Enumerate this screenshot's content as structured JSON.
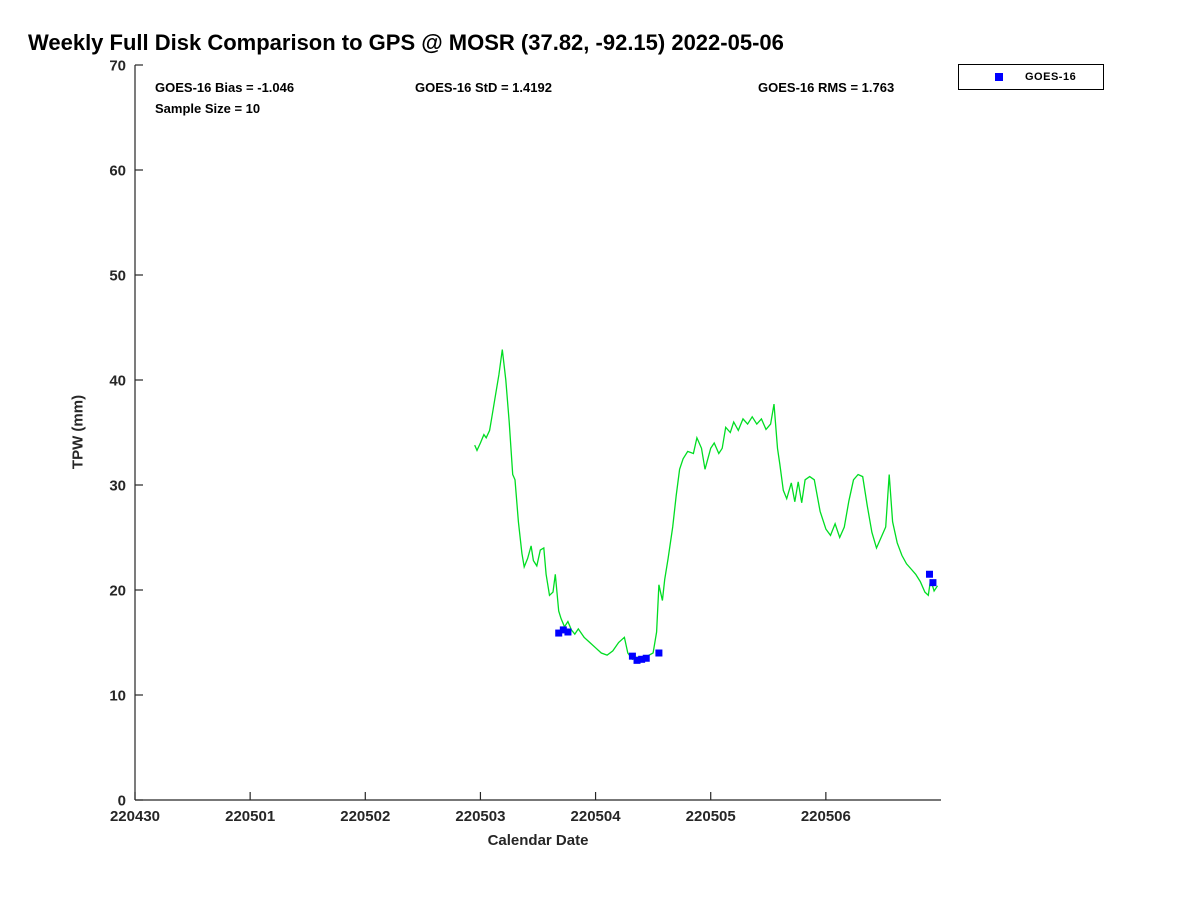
{
  "title": "Weekly Full Disk Comparison to GPS @ MOSR (37.82, -92.15) 2022-05-06",
  "annotations": {
    "bias": "GOES-16 Bias = -1.046",
    "std": "GOES-16 StD = 1.4192",
    "rms": "GOES-16 RMS = 1.763",
    "sample_size": "Sample Size = 10"
  },
  "legend": {
    "position": "top-right",
    "entries": [
      {
        "label": "GOES-16",
        "marker": "square",
        "color": "#0000ff"
      }
    ]
  },
  "chart_data": {
    "type": "line",
    "title": "Weekly Full Disk Comparison to GPS @ MOSR (37.82, -92.15) 2022-05-06",
    "xlabel": "Calendar Date",
    "ylabel": "TPW (mm)",
    "x_axis": {
      "unit": "days since 220430",
      "range": [
        0,
        7
      ],
      "tick_positions": [
        0,
        1,
        2,
        3,
        4,
        5,
        6
      ],
      "tick_labels": [
        "220430",
        "220501",
        "220502",
        "220503",
        "220504",
        "220505",
        "220506"
      ]
    },
    "ylim": [
      0,
      70
    ],
    "yticks": [
      0,
      10,
      20,
      30,
      40,
      50,
      60,
      70
    ],
    "grid": false,
    "series": [
      {
        "name": "GPS TPW",
        "type": "line",
        "color": "#00dd22",
        "x": [
          2.95,
          2.97,
          3.0,
          3.03,
          3.05,
          3.08,
          3.1,
          3.13,
          3.16,
          3.19,
          3.22,
          3.25,
          3.28,
          3.3,
          3.33,
          3.36,
          3.38,
          3.41,
          3.44,
          3.46,
          3.49,
          3.52,
          3.55,
          3.57,
          3.6,
          3.63,
          3.65,
          3.68,
          3.7,
          3.73,
          3.76,
          3.79,
          3.82,
          3.85,
          3.9,
          3.95,
          4.0,
          4.05,
          4.1,
          4.15,
          4.2,
          4.25,
          4.28,
          4.32,
          4.36,
          4.4,
          4.45,
          4.5,
          4.53,
          4.55,
          4.58,
          4.6,
          4.63,
          4.67,
          4.7,
          4.73,
          4.76,
          4.8,
          4.85,
          4.88,
          4.92,
          4.95,
          5.0,
          5.03,
          5.07,
          5.1,
          5.13,
          5.17,
          5.2,
          5.24,
          5.28,
          5.32,
          5.36,
          5.4,
          5.44,
          5.48,
          5.52,
          5.55,
          5.58,
          5.6,
          5.63,
          5.66,
          5.7,
          5.73,
          5.76,
          5.79,
          5.82,
          5.86,
          5.9,
          5.95,
          6.0,
          6.04,
          6.08,
          6.12,
          6.16,
          6.2,
          6.24,
          6.28,
          6.32,
          6.36,
          6.4,
          6.44,
          6.48,
          6.52,
          6.55,
          6.58,
          6.62,
          6.66,
          6.7,
          6.74,
          6.78,
          6.82,
          6.86,
          6.89,
          6.91,
          6.94,
          6.97
        ],
        "y": [
          33.8,
          33.3,
          34.0,
          34.8,
          34.5,
          35.2,
          36.5,
          38.5,
          40.5,
          42.9,
          40.0,
          36.0,
          31.0,
          30.5,
          26.5,
          23.5,
          22.2,
          23.0,
          24.2,
          22.8,
          22.3,
          23.8,
          24.0,
          21.5,
          19.5,
          19.8,
          21.5,
          18.0,
          17.3,
          16.5,
          17.0,
          16.2,
          15.8,
          16.3,
          15.5,
          15.0,
          14.5,
          14.0,
          13.8,
          14.2,
          15.0,
          15.5,
          14.0,
          13.4,
          13.6,
          13.5,
          13.7,
          14.0,
          16.0,
          20.5,
          19.0,
          21.0,
          23.0,
          26.0,
          29.0,
          31.5,
          32.5,
          33.2,
          33.0,
          34.5,
          33.5,
          31.5,
          33.5,
          34.0,
          33.0,
          33.5,
          35.5,
          35.0,
          36.0,
          35.2,
          36.3,
          35.8,
          36.5,
          35.8,
          36.3,
          35.3,
          35.8,
          37.7,
          33.5,
          32.0,
          29.5,
          28.7,
          30.2,
          28.4,
          30.3,
          28.3,
          30.5,
          30.8,
          30.5,
          27.5,
          25.8,
          25.2,
          26.3,
          25.0,
          26.0,
          28.5,
          30.5,
          31.0,
          30.8,
          28.0,
          25.5,
          24.0,
          25.0,
          26.0,
          31.0,
          26.5,
          24.5,
          23.3,
          22.5,
          22.0,
          21.5,
          20.8,
          19.8,
          19.5,
          21.0,
          19.9,
          20.4
        ]
      },
      {
        "name": "GOES-16",
        "type": "scatter",
        "marker": "square",
        "color": "#0000ff",
        "x": [
          3.68,
          3.72,
          3.76,
          4.32,
          4.36,
          4.4,
          4.44,
          4.55,
          6.9,
          6.93
        ],
        "y": [
          15.9,
          16.2,
          16.0,
          13.7,
          13.3,
          13.4,
          13.5,
          14.0,
          21.5,
          20.7
        ]
      }
    ]
  }
}
